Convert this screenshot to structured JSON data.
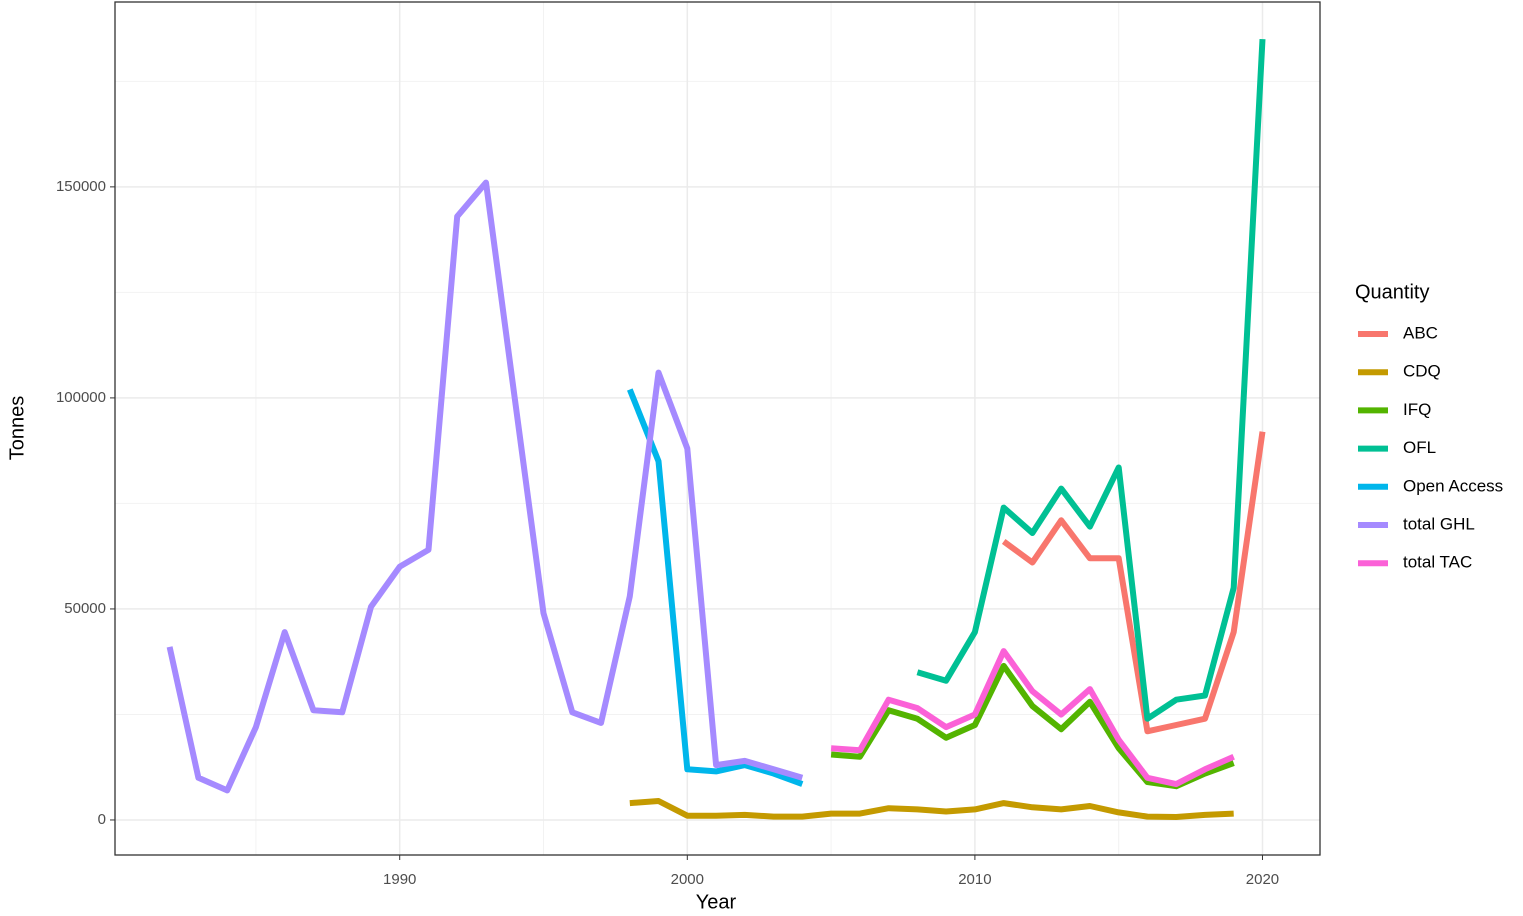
{
  "chart_data": {
    "type": "line",
    "x_label": "Year",
    "y_label": "Tonnes",
    "legend_title": "Quantity",
    "legend_position": "right",
    "grid": true,
    "xlim": [
      1980.1,
      2022
    ],
    "ylim": [
      -8300,
      193800
    ],
    "xticks": [
      1990,
      2000,
      2010,
      2020
    ],
    "minor_xticks": [
      1985,
      1995,
      2005,
      2015
    ],
    "yticks": [
      0,
      50000,
      100000,
      150000
    ],
    "minor_yticks": [
      25000,
      75000,
      125000,
      175000
    ],
    "x": [
      1982,
      1983,
      1984,
      1985,
      1986,
      1987,
      1988,
      1989,
      1990,
      1991,
      1992,
      1993,
      1994,
      1995,
      1996,
      1997,
      1998,
      1999,
      2000,
      2001,
      2002,
      2003,
      2004,
      2005,
      2006,
      2007,
      2008,
      2009,
      2010,
      2011,
      2012,
      2013,
      2014,
      2015,
      2016,
      2017,
      2018,
      2019,
      2020
    ],
    "series": [
      {
        "name": "ABC",
        "color": "#F8766D",
        "values": [
          null,
          null,
          null,
          null,
          null,
          null,
          null,
          null,
          null,
          null,
          null,
          null,
          null,
          null,
          null,
          null,
          null,
          null,
          null,
          null,
          null,
          null,
          null,
          null,
          null,
          null,
          null,
          null,
          null,
          66000,
          61000,
          71000,
          62000,
          62000,
          21000,
          22500,
          24000,
          44500,
          92000
        ]
      },
      {
        "name": "CDQ",
        "color": "#C49A00",
        "values": [
          null,
          null,
          null,
          null,
          null,
          null,
          null,
          null,
          null,
          null,
          null,
          null,
          null,
          null,
          null,
          null,
          4000,
          4500,
          1000,
          1000,
          1200,
          800,
          800,
          1500,
          1500,
          2800,
          2500,
          2000,
          2500,
          4000,
          3000,
          2500,
          3300,
          1800,
          800,
          700,
          1200,
          1500,
          null
        ]
      },
      {
        "name": "IFQ",
        "color": "#53B400",
        "values": [
          null,
          null,
          null,
          null,
          null,
          null,
          null,
          null,
          null,
          null,
          null,
          null,
          null,
          null,
          null,
          null,
          null,
          null,
          null,
          null,
          null,
          null,
          null,
          15500,
          15000,
          26000,
          24000,
          19500,
          22500,
          36500,
          27000,
          21500,
          28000,
          17000,
          9000,
          8000,
          11000,
          13500,
          null
        ]
      },
      {
        "name": "OFL",
        "color": "#00C094",
        "values": [
          null,
          null,
          null,
          null,
          null,
          null,
          null,
          null,
          null,
          null,
          null,
          null,
          null,
          null,
          null,
          null,
          null,
          null,
          null,
          null,
          null,
          null,
          null,
          null,
          null,
          null,
          35000,
          33000,
          44500,
          74000,
          68000,
          78500,
          69500,
          83500,
          24000,
          28500,
          29500,
          55000,
          185000
        ]
      },
      {
        "name": "Open Access",
        "color": "#00B6EB",
        "values": [
          null,
          null,
          null,
          null,
          null,
          null,
          null,
          null,
          null,
          null,
          null,
          null,
          null,
          null,
          null,
          null,
          102000,
          85000,
          12000,
          11500,
          13000,
          11000,
          8500,
          null,
          null,
          null,
          null,
          null,
          null,
          null,
          null,
          null,
          null,
          null,
          null,
          null,
          null,
          null,
          null
        ]
      },
      {
        "name": "total GHL",
        "color": "#A58AFF",
        "values": [
          41000,
          10000,
          7000,
          22000,
          44500,
          26000,
          25500,
          50500,
          60000,
          64000,
          143000,
          151000,
          100000,
          49000,
          25500,
          23000,
          53000,
          106000,
          88000,
          13000,
          14000,
          12000,
          10000,
          null,
          null,
          null,
          null,
          null,
          null,
          null,
          null,
          null,
          null,
          null,
          null,
          null,
          null,
          null,
          null
        ]
      },
      {
        "name": "total TAC",
        "color": "#FB61D7",
        "values": [
          null,
          null,
          null,
          null,
          null,
          null,
          null,
          null,
          null,
          null,
          null,
          null,
          null,
          null,
          null,
          null,
          null,
          null,
          null,
          null,
          null,
          null,
          null,
          17000,
          16500,
          28500,
          26500,
          22000,
          25000,
          40000,
          30500,
          25000,
          31000,
          19000,
          10000,
          8500,
          12000,
          15000,
          null
        ]
      }
    ]
  }
}
